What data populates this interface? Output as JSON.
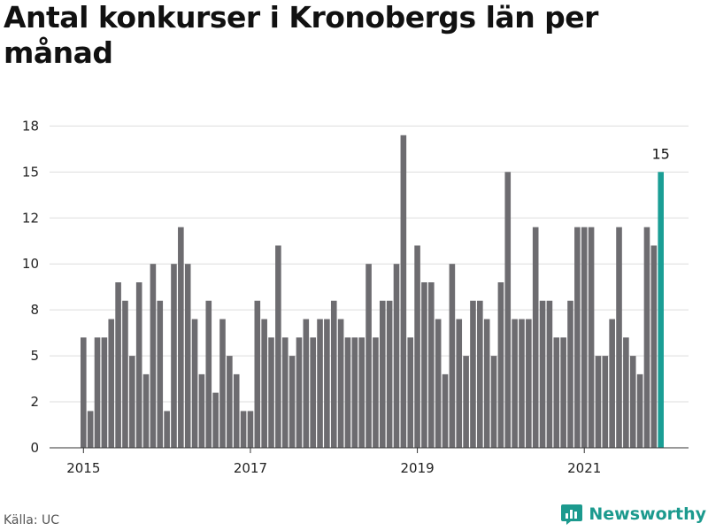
{
  "chart_data": {
    "type": "bar",
    "title": "Antal konkurser i Kronobergs län per månad",
    "xlabel": "",
    "ylabel": "",
    "ylim": [
      0,
      18
    ],
    "yticks": [
      "0",
      "2",
      "5",
      "8",
      "10",
      "12",
      "15",
      "18"
    ],
    "ytick_values": [
      0,
      2.5,
      5,
      7.5,
      10,
      12.5,
      15,
      17.5
    ],
    "xticks": [
      "2015",
      "2017",
      "2019",
      "2021"
    ],
    "xtick_index": [
      0,
      24,
      48,
      72
    ],
    "grid": true,
    "highlight_color": "#1a9e95",
    "bar_color": "#6d6c70",
    "annotation": {
      "index": 83,
      "label": "15"
    },
    "categories": [
      "2015-01",
      "2015-02",
      "2015-03",
      "2015-04",
      "2015-05",
      "2015-06",
      "2015-07",
      "2015-08",
      "2015-09",
      "2015-10",
      "2015-11",
      "2015-12",
      "2016-01",
      "2016-02",
      "2016-03",
      "2016-04",
      "2016-05",
      "2016-06",
      "2016-07",
      "2016-08",
      "2016-09",
      "2016-10",
      "2016-11",
      "2016-12",
      "2017-01",
      "2017-02",
      "2017-03",
      "2017-04",
      "2017-05",
      "2017-06",
      "2017-07",
      "2017-08",
      "2017-09",
      "2017-10",
      "2017-11",
      "2017-12",
      "2018-01",
      "2018-02",
      "2018-03",
      "2018-04",
      "2018-05",
      "2018-06",
      "2018-07",
      "2018-08",
      "2018-09",
      "2018-10",
      "2018-11",
      "2018-12",
      "2019-01",
      "2019-02",
      "2019-03",
      "2019-04",
      "2019-05",
      "2019-06",
      "2019-07",
      "2019-08",
      "2019-09",
      "2019-10",
      "2019-11",
      "2019-12",
      "2020-01",
      "2020-02",
      "2020-03",
      "2020-04",
      "2020-05",
      "2020-06",
      "2020-07",
      "2020-08",
      "2020-09",
      "2020-10",
      "2020-11",
      "2020-12",
      "2021-01",
      "2021-02",
      "2021-03",
      "2021-04",
      "2021-05",
      "2021-06",
      "2021-07",
      "2021-08",
      "2021-09",
      "2021-10",
      "2021-11",
      "2021-12"
    ],
    "values": [
      6,
      2,
      6,
      6,
      7,
      9,
      8,
      5,
      9,
      4,
      10,
      8,
      2,
      10,
      12,
      10,
      7,
      4,
      8,
      3,
      7,
      5,
      4,
      2,
      2,
      8,
      7,
      6,
      11,
      6,
      5,
      6,
      7,
      6,
      7,
      7,
      8,
      7,
      6,
      6,
      6,
      10,
      6,
      8,
      8,
      10,
      17,
      6,
      11,
      9,
      9,
      7,
      4,
      10,
      7,
      5,
      8,
      8,
      7,
      5,
      9,
      15,
      7,
      7,
      7,
      12,
      8,
      8,
      6,
      6,
      8,
      12,
      12,
      12,
      5,
      5,
      7,
      12,
      6,
      5,
      4,
      12,
      11,
      15
    ]
  },
  "footer": {
    "source": "Källa: UC",
    "brand": "Newsworthy"
  },
  "icons": {
    "brand_logo": "bar-chart-bubble-icon"
  }
}
